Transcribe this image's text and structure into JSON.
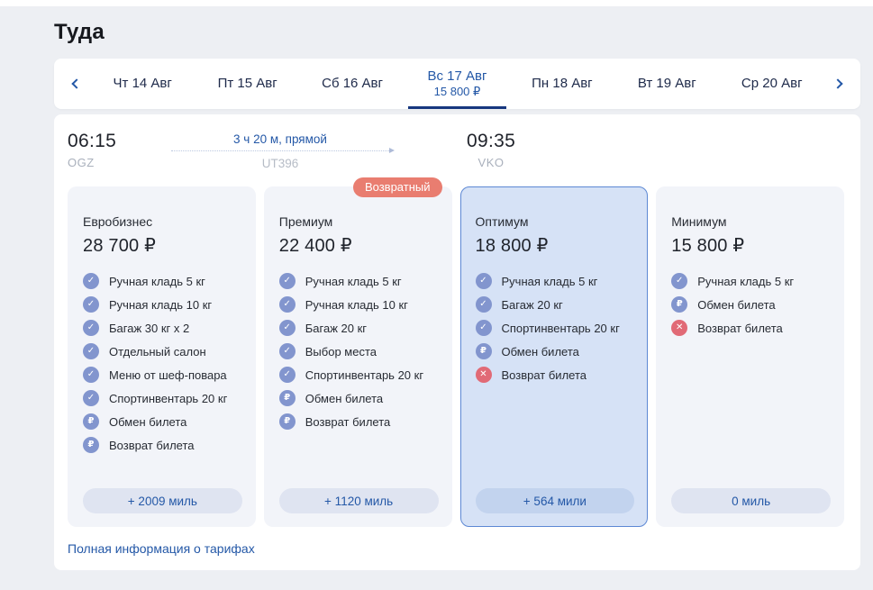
{
  "page": {
    "title": "Туда"
  },
  "colors": {
    "page_bg": "#edeff3",
    "accent_blue": "#2458a7",
    "tab_underline": "#16377f",
    "selected_card_bg": "#d6e2f6",
    "selected_card_border": "#5d88d4",
    "feature_icon_blue": "#8295ce",
    "feature_icon_red": "#e16a76",
    "badge_bg": "#e97d70"
  },
  "date_tabs": {
    "prev_icon": "chevron-left",
    "next_icon": "chevron-right",
    "tabs": [
      {
        "label": "Чт 14 Авг",
        "selected": false
      },
      {
        "label": "Пт 15 Авг",
        "selected": false
      },
      {
        "label": "Сб 16 Авг",
        "selected": false
      },
      {
        "label": "Вс 17 Авг",
        "price": "15 800 ₽",
        "selected": true
      },
      {
        "label": "Пн 18 Авг",
        "selected": false
      },
      {
        "label": "Вт 19 Авг",
        "selected": false
      },
      {
        "label": "Ср 20 Авг",
        "selected": false
      }
    ]
  },
  "flight": {
    "departure_time": "06:15",
    "departure_code": "OGZ",
    "duration": "3 ч 20 м, прямой",
    "flight_number": "UT396",
    "arrival_time": "09:35",
    "arrival_code": "VKO"
  },
  "fares": [
    {
      "name": "Евробизнес",
      "price": "28 700 ₽",
      "miles": "+ 2009 миль",
      "selected": false,
      "features": [
        {
          "icon": "check",
          "label": "Ручная кладь 5 кг"
        },
        {
          "icon": "check",
          "label": "Ручная кладь 10 кг"
        },
        {
          "icon": "check",
          "label": "Багаж 30 кг x 2"
        },
        {
          "icon": "check",
          "label": "Отдельный салон"
        },
        {
          "icon": "check",
          "label": "Меню от шеф-повара"
        },
        {
          "icon": "check",
          "label": "Спортинвентарь 20 кг"
        },
        {
          "icon": "ruble",
          "label": "Обмен билета"
        },
        {
          "icon": "ruble",
          "label": "Возврат билета"
        }
      ]
    },
    {
      "name": "Премиум",
      "price": "22 400 ₽",
      "badge": "Возвратный",
      "miles": "+ 1120 миль",
      "selected": false,
      "features": [
        {
          "icon": "check",
          "label": "Ручная кладь 5 кг"
        },
        {
          "icon": "check",
          "label": "Ручная кладь 10 кг"
        },
        {
          "icon": "check",
          "label": "Багаж 20 кг"
        },
        {
          "icon": "check",
          "label": "Выбор места"
        },
        {
          "icon": "check",
          "label": "Спортинвентарь 20 кг"
        },
        {
          "icon": "ruble",
          "label": "Обмен билета"
        },
        {
          "icon": "ruble",
          "label": "Возврат билета"
        }
      ]
    },
    {
      "name": "Оптимум",
      "price": "18 800 ₽",
      "miles": "+ 564 мили",
      "selected": true,
      "features": [
        {
          "icon": "check",
          "label": "Ручная кладь 5 кг"
        },
        {
          "icon": "check",
          "label": "Багаж 20 кг"
        },
        {
          "icon": "check",
          "label": "Спортинвентарь 20 кг"
        },
        {
          "icon": "ruble",
          "label": "Обмен билета"
        },
        {
          "icon": "cross",
          "label": "Возврат билета"
        }
      ]
    },
    {
      "name": "Минимум",
      "price": "15 800 ₽",
      "miles": "0 миль",
      "selected": false,
      "features": [
        {
          "icon": "check",
          "label": "Ручная кладь 5 кг"
        },
        {
          "icon": "ruble",
          "label": "Обмен билета"
        },
        {
          "icon": "cross",
          "label": "Возврат билета"
        }
      ]
    }
  ],
  "footer": {
    "tariffs_link": "Полная информация о тарифах"
  },
  "icon_glyphs": {
    "check": "✓",
    "ruble": "₽",
    "cross": "✕"
  }
}
